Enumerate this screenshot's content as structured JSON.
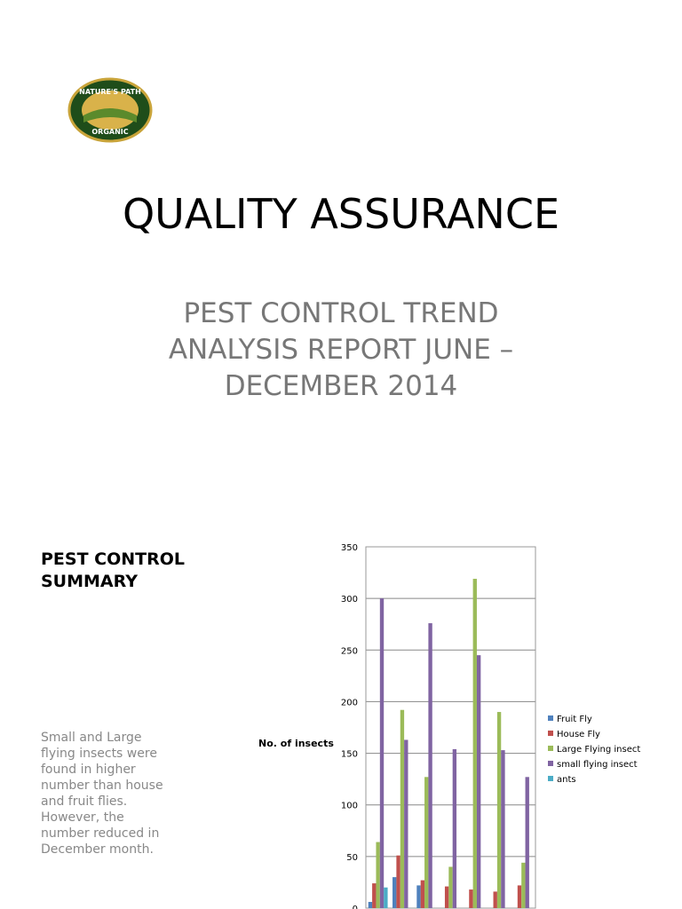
{
  "logo": {
    "top": "NATURE'S PATH",
    "bottom": "ORGANIC"
  },
  "title": "QUALITY ASSURANCE",
  "subtitle": [
    "PEST CONTROL TREND",
    "ANALYSIS REPORT JUNE –",
    "DECEMBER 2014"
  ],
  "summary": {
    "heading": [
      "PEST CONTROL",
      "SUMMARY"
    ],
    "text": [
      "Small and Large",
      "flying insects were",
      "found in higher",
      "number than house",
      "and fruit flies.",
      "However, the",
      "number reduced in",
      "December month."
    ]
  },
  "chart_data": {
    "type": "bar",
    "ylabel": "No. of insects",
    "categories": [
      null,
      null,
      null,
      null,
      null,
      null,
      null
    ],
    "series": [
      {
        "name": "Fruit Fly",
        "color": "#4f81bd",
        "values": [
          6,
          30,
          22,
          0,
          0,
          0,
          0
        ]
      },
      {
        "name": "House Fly",
        "color": "#c0504d",
        "values": [
          24,
          51,
          27,
          21,
          18,
          16,
          22
        ]
      },
      {
        "name": "Large Flying insect",
        "color": "#9bbb59",
        "values": [
          64,
          192,
          127,
          40,
          319,
          190,
          44
        ]
      },
      {
        "name": "small flying insect",
        "color": "#8064a2",
        "values": [
          300,
          163,
          276,
          154,
          245,
          153,
          127
        ]
      },
      {
        "name": "ants",
        "color": "#4bacc6",
        "values": [
          20,
          0,
          0,
          0,
          0,
          0,
          0
        ]
      }
    ],
    "ylim": [
      0,
      350
    ],
    "yticks": [
      0,
      50,
      100,
      150,
      200,
      250,
      300,
      350
    ],
    "grid": true,
    "legend": "right"
  }
}
